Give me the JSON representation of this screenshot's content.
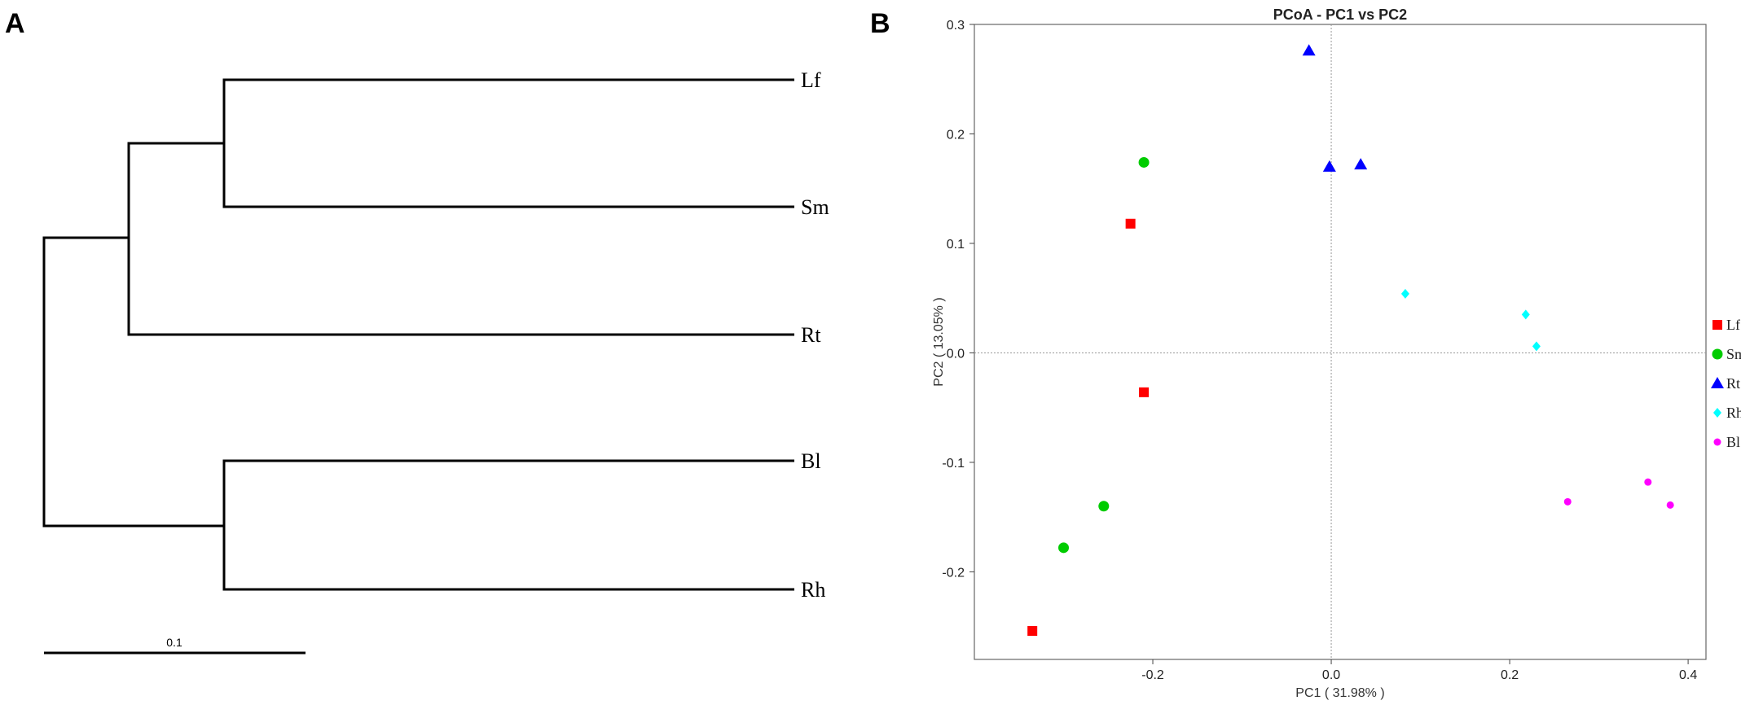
{
  "panels": {
    "a_letter": "A",
    "b_letter": "B"
  },
  "dendrogram": {
    "leaves": [
      "Lf",
      "Sm",
      "Rt",
      "Bl",
      "Rh"
    ],
    "scale_bar_label": "0.1",
    "scale_bar_value": 0.1
  },
  "chart_data": {
    "type": "scatter",
    "title": "PCoA - PC1 vs PC2",
    "xlabel": "PC1 ( 31.98% )",
    "ylabel": "PC2 ( 13.05% )",
    "xlim": [
      -0.4,
      0.42
    ],
    "ylim": [
      -0.28,
      0.3
    ],
    "xticks": [
      -0.2,
      0.0,
      0.2,
      0.4
    ],
    "xtick_labels": [
      "-0.2",
      "0.0",
      "0.2",
      "0.4"
    ],
    "yticks": [
      -0.2,
      -0.1,
      0.0,
      0.1,
      0.2,
      0.3
    ],
    "ytick_labels": [
      "-0.2",
      "-0.1",
      "0.0",
      "0.1",
      "0.2",
      "0.3"
    ],
    "grid": false,
    "reference_lines": {
      "x": 0,
      "y": 0
    },
    "legend_placement": "right",
    "series": [
      {
        "name": "Lf",
        "marker": "square",
        "color": "#ff0000",
        "points": [
          [
            -0.225,
            0.118
          ],
          [
            -0.21,
            -0.036
          ],
          [
            -0.335,
            -0.254
          ]
        ]
      },
      {
        "name": "Sm",
        "marker": "circle",
        "color": "#00cc00",
        "points": [
          [
            -0.21,
            0.174
          ],
          [
            -0.255,
            -0.14
          ],
          [
            -0.3,
            -0.178
          ]
        ]
      },
      {
        "name": "Rt",
        "marker": "triangle",
        "color": "#0000ff",
        "points": [
          [
            -0.025,
            0.276
          ],
          [
            -0.002,
            0.17
          ],
          [
            0.033,
            0.172
          ]
        ]
      },
      {
        "name": "Rh",
        "marker": "diamond",
        "color": "#00ffff",
        "points": [
          [
            0.083,
            0.054
          ],
          [
            0.218,
            0.035
          ],
          [
            0.23,
            0.006
          ]
        ]
      },
      {
        "name": "Bl",
        "marker": "dot",
        "color": "#ff00ff",
        "points": [
          [
            0.265,
            -0.136
          ],
          [
            0.355,
            -0.118
          ],
          [
            0.38,
            -0.139
          ]
        ]
      }
    ]
  }
}
